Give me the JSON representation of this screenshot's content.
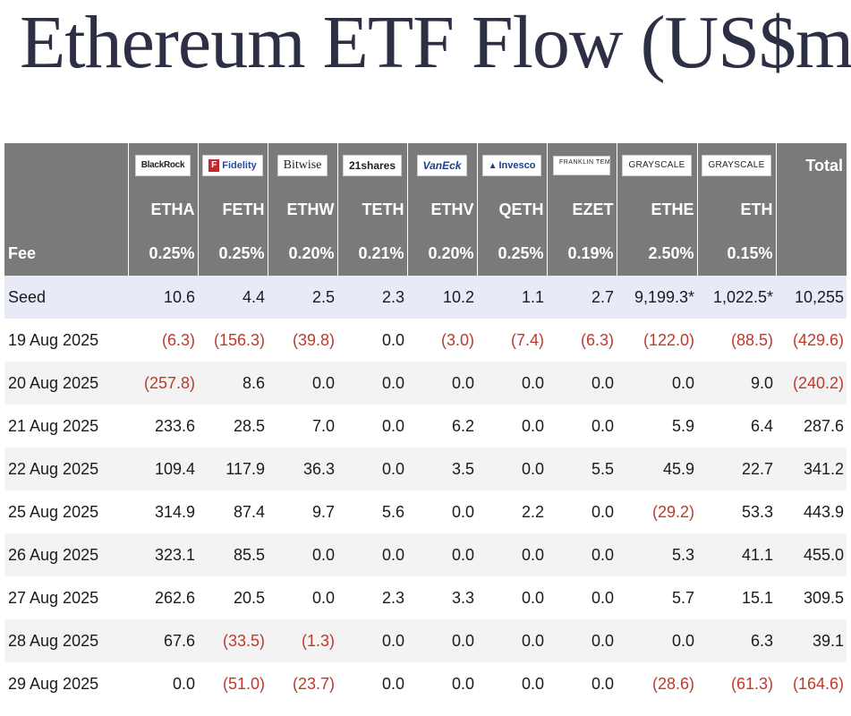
{
  "title": "Ethereum ETF Flow (US$m)",
  "logos": [
    {
      "name": "BlackRock",
      "label": "BlackRock"
    },
    {
      "name": "Fidelity",
      "label": "Fidelity"
    },
    {
      "name": "Bitwise",
      "label": "Bitwise"
    },
    {
      "name": "21shares",
      "label": "21shares"
    },
    {
      "name": "VanEck",
      "label": "VanEck"
    },
    {
      "name": "Invesco",
      "label": "Invesco"
    },
    {
      "name": "Franklin Templeton",
      "label": "FRANKLIN TEMPLETON"
    },
    {
      "name": "Grayscale",
      "label": "GRAYSCALE"
    },
    {
      "name": "Grayscale",
      "label": "GRAYSCALE"
    }
  ],
  "total_header": "Total",
  "tickers": [
    "ETHA",
    "FETH",
    "ETHW",
    "TETH",
    "ETHV",
    "QETH",
    "EZET",
    "ETHE",
    "ETH"
  ],
  "fee_label": "Fee",
  "fees": [
    "0.25%",
    "0.25%",
    "0.20%",
    "0.21%",
    "0.20%",
    "0.25%",
    "0.19%",
    "2.50%",
    "0.15%"
  ],
  "colors": {
    "header_bg": "#7a7a7a",
    "seed_bg": "#e8ebf7",
    "negative": "#c0392b",
    "title": "#2d2f45"
  },
  "rows": [
    {
      "label": "Seed",
      "values": [
        "10.6",
        "4.4",
        "2.5",
        "2.3",
        "10.2",
        "1.1",
        "2.7",
        "9,199.3*",
        "1,022.5*"
      ],
      "total": "10,255"
    },
    {
      "label": "19 Aug 2025",
      "values": [
        "(6.3)",
        "(156.3)",
        "(39.8)",
        "0.0",
        "(3.0)",
        "(7.4)",
        "(6.3)",
        "(122.0)",
        "(88.5)"
      ],
      "total": "(429.6)"
    },
    {
      "label": "20 Aug 2025",
      "values": [
        "(257.8)",
        "8.6",
        "0.0",
        "0.0",
        "0.0",
        "0.0",
        "0.0",
        "0.0",
        "9.0"
      ],
      "total": "(240.2)"
    },
    {
      "label": "21 Aug 2025",
      "values": [
        "233.6",
        "28.5",
        "7.0",
        "0.0",
        "6.2",
        "0.0",
        "0.0",
        "5.9",
        "6.4"
      ],
      "total": "287.6"
    },
    {
      "label": "22 Aug 2025",
      "values": [
        "109.4",
        "117.9",
        "36.3",
        "0.0",
        "3.5",
        "0.0",
        "5.5",
        "45.9",
        "22.7"
      ],
      "total": "341.2"
    },
    {
      "label": "25 Aug 2025",
      "values": [
        "314.9",
        "87.4",
        "9.7",
        "5.6",
        "0.0",
        "2.2",
        "0.0",
        "(29.2)",
        "53.3"
      ],
      "total": "443.9"
    },
    {
      "label": "26 Aug 2025",
      "values": [
        "323.1",
        "85.5",
        "0.0",
        "0.0",
        "0.0",
        "0.0",
        "0.0",
        "5.3",
        "41.1"
      ],
      "total": "455.0"
    },
    {
      "label": "27 Aug 2025",
      "values": [
        "262.6",
        "20.5",
        "0.0",
        "2.3",
        "3.3",
        "0.0",
        "0.0",
        "5.7",
        "15.1"
      ],
      "total": "309.5"
    },
    {
      "label": "28 Aug 2025",
      "values": [
        "67.6",
        "(33.5)",
        "(1.3)",
        "0.0",
        "0.0",
        "0.0",
        "0.0",
        "0.0",
        "6.3"
      ],
      "total": "39.1"
    },
    {
      "label": "29 Aug 2025",
      "values": [
        "0.0",
        "(51.0)",
        "(23.7)",
        "0.0",
        "0.0",
        "0.0",
        "0.0",
        "(28.6)",
        "(61.3)"
      ],
      "total": "(164.6)"
    }
  ]
}
